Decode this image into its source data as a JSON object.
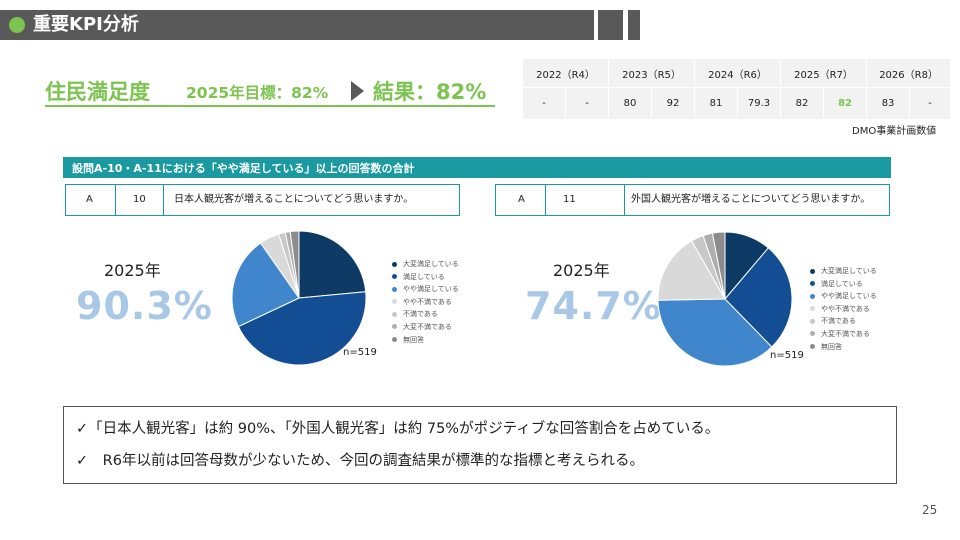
{
  "header": {
    "title": "重要KPI分析"
  },
  "kpi": {
    "title": "住民満足度",
    "target": "2025年目標：82%",
    "result": "結果：82%"
  },
  "year_table": {
    "years": [
      "2022（R4）",
      "2023（R5）",
      "2024（R6）",
      "2025（R7）",
      "2026（R8）"
    ],
    "values": [
      "-",
      "-",
      "80",
      "92",
      "81",
      "79.3",
      "82",
      "82",
      "83",
      "-"
    ],
    "highlight_index": 7,
    "highlight_color": "#7cc34f"
  },
  "source_note": "DMO事業計画数値",
  "section_title": "設問A-10・A-11における「やや満足している」以上の回答数の合計",
  "questions": [
    {
      "cat": "A",
      "num": "10",
      "text": "日本人観光客が増えることについてどう思いますか。"
    },
    {
      "cat": "A",
      "num": "11",
      "text": "外国人観光客が増えることについてどう思いますか。"
    }
  ],
  "legend_labels": [
    "大変満足している",
    "満足している",
    "やや満足している",
    "やや不満である",
    "不満である",
    "大変不満である",
    "無回答"
  ],
  "legend_colors": [
    "#0d3b66",
    "#134e94",
    "#3f86cc",
    "#d9d9d9",
    "#c8c8c8",
    "#aeaeae",
    "#8c8c8c"
  ],
  "chart_data": [
    {
      "type": "pie",
      "year": "2025年",
      "headline": "90.3%",
      "n": "n=519",
      "labels": [
        "大変満足している",
        "満足している",
        "やや満足している",
        "やや不満である",
        "不満である",
        "大変不満である",
        "無回答"
      ],
      "values": [
        23.5,
        44.5,
        22.3,
        4.8,
        1.6,
        1.2,
        2.1
      ]
    },
    {
      "type": "pie",
      "year": "2025年",
      "headline": "74.7%",
      "n": "n=519",
      "labels": [
        "大変満足している",
        "満足している",
        "やや満足している",
        "やや不満である",
        "不満である",
        "大変不満である",
        "無回答"
      ],
      "values": [
        11.2,
        26.5,
        37.0,
        17.0,
        3.0,
        2.3,
        3.0
      ]
    }
  ],
  "conclusions": [
    "✓「日本人観光客」は約 90%、「外国人観光客」は約 75%がポジティブな回答割合を占めている。",
    "✓　R6年以前は回答母数が少ないため、今回の調査結果が標準的な指標と考えられる。"
  ],
  "page_number": "25"
}
